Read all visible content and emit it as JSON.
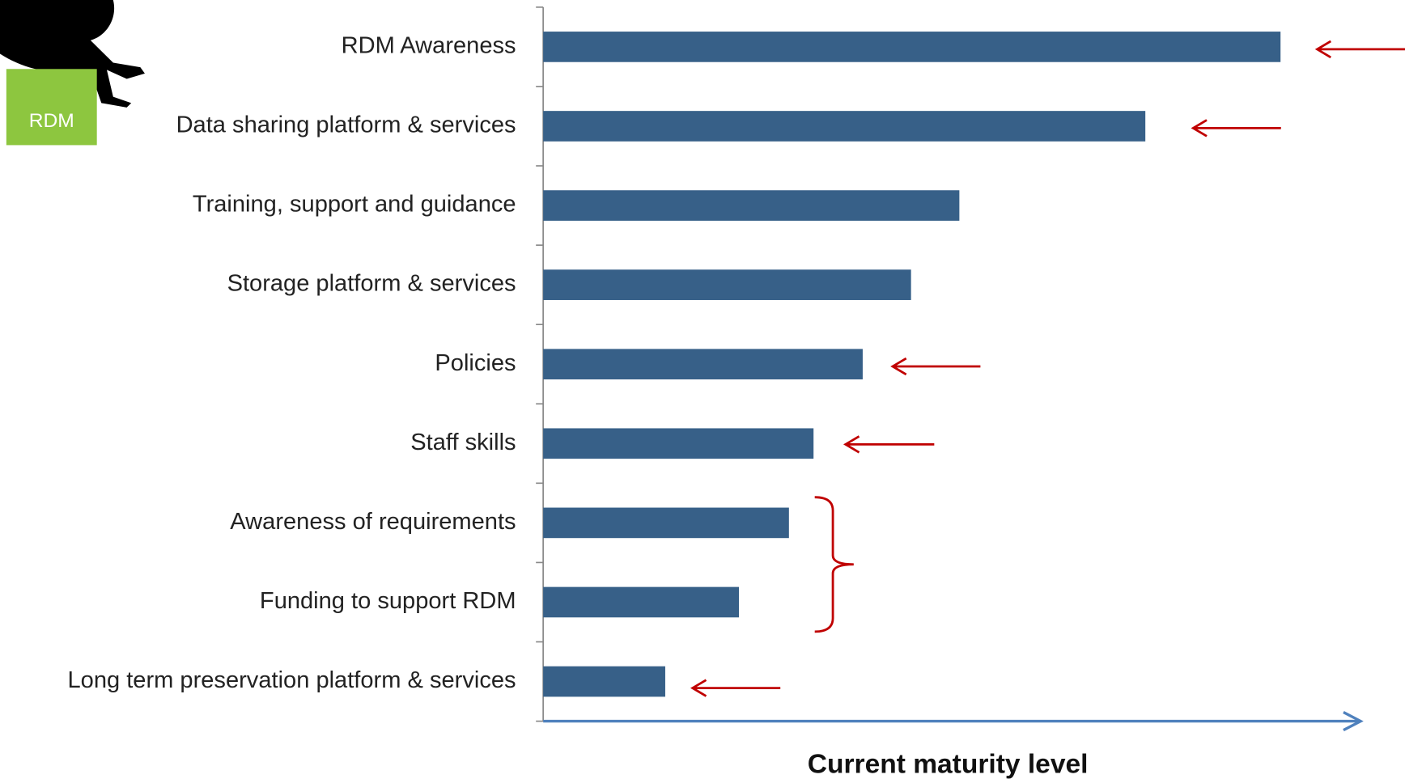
{
  "logo_text": "RDM",
  "chart_data": {
    "type": "hbar",
    "xlabel": "Current maturity level",
    "categories": [
      "RDM Awareness",
      "Data sharing platform & services",
      "Training, support and guidance",
      "Storage platform & services",
      "Policies",
      "Staff skills",
      "Awareness of requirements",
      "Funding to support RDM",
      "Long term preservation platform & services"
    ],
    "values": [
      90,
      73.5,
      50.8,
      44.9,
      39,
      33,
      30,
      23.9,
      14.9
    ],
    "color": "#376088",
    "xlim": [
      0,
      100
    ]
  }
}
